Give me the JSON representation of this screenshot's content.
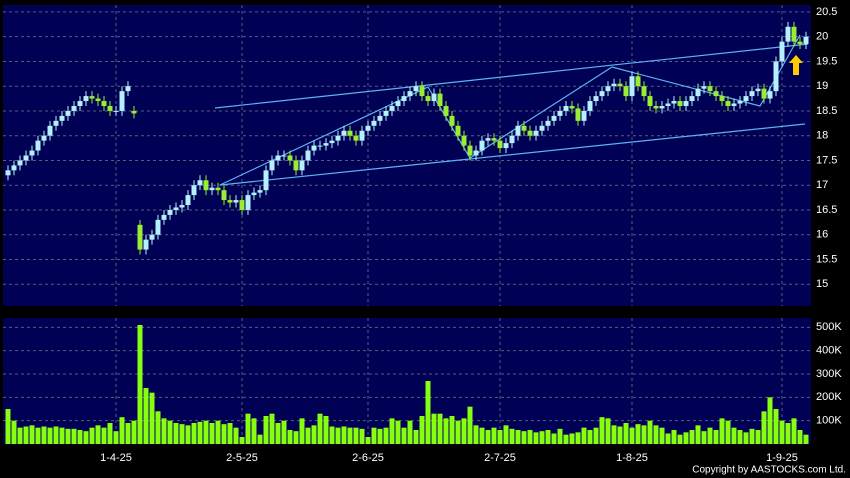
{
  "chart_data": [
    {
      "type": "candlestick",
      "categories": [
        null,
        null,
        null,
        null,
        null,
        null,
        null,
        null,
        null,
        null,
        null,
        null,
        null,
        null,
        null,
        null,
        null,
        null,
        "1-4-25",
        null,
        null,
        null,
        null,
        null,
        null,
        null,
        null,
        null,
        null,
        null,
        null,
        null,
        null,
        null,
        null,
        null,
        null,
        null,
        null,
        "2-5-25",
        null,
        null,
        null,
        null,
        null,
        null,
        null,
        null,
        null,
        null,
        null,
        null,
        null,
        null,
        null,
        null,
        null,
        null,
        null,
        null,
        "2-6-25",
        null,
        null,
        null,
        null,
        null,
        null,
        null,
        null,
        null,
        null,
        null,
        null,
        null,
        null,
        null,
        null,
        null,
        null,
        null,
        null,
        null,
        "2-7-25",
        null,
        null,
        null,
        null,
        null,
        null,
        null,
        null,
        null,
        null,
        null,
        null,
        null,
        null,
        null,
        null,
        null,
        null,
        null,
        null,
        null,
        "1-8-25",
        null,
        null,
        null,
        null,
        null,
        null,
        null,
        null,
        null,
        null,
        null,
        null,
        null,
        null,
        null,
        null,
        null,
        null,
        null,
        null,
        null,
        null,
        null,
        null,
        "1-9-25",
        null,
        null,
        null,
        null
      ],
      "open": [
        17.2,
        17.3,
        17.4,
        17.5,
        17.6,
        17.7,
        17.9,
        18.0,
        18.2,
        18.3,
        18.4,
        18.5,
        18.6,
        18.7,
        18.8,
        18.75,
        18.7,
        18.6,
        18.5,
        18.5,
        18.9,
        18.5,
        16.2,
        15.7,
        15.9,
        16.0,
        16.3,
        16.4,
        16.5,
        16.55,
        16.6,
        16.8,
        17.0,
        17.1,
        16.9,
        16.95,
        16.9,
        16.7,
        16.65,
        16.7,
        16.5,
        16.8,
        16.85,
        16.9,
        17.3,
        17.5,
        17.6,
        17.6,
        17.5,
        17.3,
        17.5,
        17.7,
        17.8,
        17.8,
        17.85,
        17.9,
        18.0,
        18.1,
        18.0,
        17.9,
        18.1,
        18.2,
        18.3,
        18.4,
        18.5,
        18.6,
        18.7,
        18.8,
        18.9,
        19.0,
        18.8,
        18.7,
        18.85,
        18.6,
        18.4,
        18.2,
        18.0,
        17.8,
        17.6,
        17.7,
        17.9,
        17.95,
        17.9,
        17.75,
        17.85,
        18.0,
        18.2,
        18.1,
        18.0,
        18.1,
        18.2,
        18.3,
        18.4,
        18.5,
        18.6,
        18.55,
        18.3,
        18.5,
        18.7,
        18.8,
        18.9,
        19.0,
        19.05,
        19.0,
        18.8,
        19.2,
        19.0,
        18.8,
        18.6,
        18.55,
        18.6,
        18.65,
        18.7,
        18.6,
        18.7,
        18.8,
        18.95,
        19.0,
        18.9,
        18.8,
        18.7,
        18.6,
        18.65,
        18.7,
        18.8,
        18.9,
        18.95,
        18.75,
        18.9,
        19.5,
        19.9,
        20.2,
        19.9,
        19.85
      ],
      "high": [
        17.4,
        17.5,
        17.6,
        17.7,
        17.8,
        18.0,
        18.1,
        18.3,
        18.4,
        18.5,
        18.6,
        18.7,
        18.8,
        18.9,
        18.9,
        18.85,
        18.8,
        18.7,
        18.6,
        19.0,
        19.1,
        18.6,
        16.3,
        16.0,
        16.1,
        16.4,
        16.5,
        16.6,
        16.65,
        16.7,
        16.9,
        17.1,
        17.2,
        17.2,
        17.05,
        17.05,
        17.0,
        16.8,
        16.8,
        16.8,
        16.9,
        16.95,
        17.0,
        17.4,
        17.6,
        17.7,
        17.7,
        17.7,
        17.6,
        17.6,
        17.8,
        17.9,
        17.9,
        17.95,
        18.0,
        18.1,
        18.2,
        18.2,
        18.1,
        18.2,
        18.3,
        18.4,
        18.5,
        18.6,
        18.7,
        18.8,
        18.9,
        19.0,
        19.1,
        19.1,
        18.9,
        18.95,
        18.95,
        18.7,
        18.5,
        18.3,
        18.1,
        17.9,
        17.8,
        18.0,
        18.05,
        18.05,
        18.0,
        17.95,
        18.1,
        18.3,
        18.3,
        18.2,
        18.2,
        18.3,
        18.4,
        18.5,
        18.6,
        18.7,
        18.7,
        18.65,
        18.6,
        18.8,
        18.9,
        19.0,
        19.1,
        19.15,
        19.15,
        19.1,
        19.3,
        19.3,
        19.1,
        18.9,
        18.7,
        18.7,
        18.75,
        18.8,
        18.8,
        18.8,
        18.9,
        19.05,
        19.1,
        19.1,
        19.0,
        18.9,
        18.8,
        18.75,
        18.8,
        18.9,
        19.0,
        19.05,
        19.05,
        19.0,
        19.6,
        20.0,
        20.3,
        20.3,
        20.0,
        20.1
      ],
      "low": [
        17.1,
        17.2,
        17.3,
        17.4,
        17.5,
        17.6,
        17.8,
        17.9,
        18.1,
        18.2,
        18.3,
        18.4,
        18.5,
        18.6,
        18.65,
        18.6,
        18.5,
        18.4,
        18.4,
        18.4,
        18.8,
        18.35,
        15.6,
        15.6,
        15.8,
        15.9,
        16.2,
        16.3,
        16.4,
        16.45,
        16.5,
        16.7,
        16.9,
        16.8,
        16.8,
        16.8,
        16.6,
        16.55,
        16.55,
        16.4,
        16.4,
        16.7,
        16.75,
        16.8,
        17.2,
        17.4,
        17.5,
        17.4,
        17.2,
        17.2,
        17.4,
        17.6,
        17.7,
        17.7,
        17.75,
        17.8,
        17.9,
        17.9,
        17.8,
        17.8,
        18.0,
        18.1,
        18.2,
        18.3,
        18.4,
        18.5,
        18.6,
        18.7,
        18.8,
        18.7,
        18.6,
        18.6,
        18.5,
        18.3,
        18.1,
        17.9,
        17.7,
        17.5,
        17.5,
        17.6,
        17.8,
        17.8,
        17.65,
        17.65,
        17.75,
        17.9,
        18.0,
        17.9,
        17.9,
        18.0,
        18.1,
        18.2,
        18.3,
        18.4,
        18.45,
        18.2,
        18.2,
        18.4,
        18.6,
        18.7,
        18.8,
        18.9,
        18.9,
        18.7,
        18.7,
        18.9,
        18.7,
        18.5,
        18.45,
        18.45,
        18.5,
        18.55,
        18.5,
        18.5,
        18.6,
        18.7,
        18.85,
        18.8,
        18.7,
        18.6,
        18.5,
        18.5,
        18.55,
        18.6,
        18.7,
        18.8,
        18.65,
        18.65,
        18.8,
        19.4,
        19.8,
        19.8,
        19.75,
        19.75
      ],
      "close": [
        17.3,
        17.4,
        17.5,
        17.6,
        17.7,
        17.9,
        18.0,
        18.2,
        18.3,
        18.4,
        18.5,
        18.6,
        18.7,
        18.8,
        18.75,
        18.7,
        18.6,
        18.5,
        18.5,
        18.9,
        19.0,
        18.45,
        15.7,
        15.9,
        16.0,
        16.3,
        16.4,
        16.5,
        16.55,
        16.6,
        16.8,
        17.0,
        17.1,
        16.9,
        16.95,
        16.9,
        16.7,
        16.65,
        16.7,
        16.5,
        16.8,
        16.85,
        16.9,
        17.3,
        17.5,
        17.6,
        17.6,
        17.5,
        17.3,
        17.5,
        17.7,
        17.8,
        17.8,
        17.85,
        17.9,
        18.0,
        18.1,
        18.0,
        17.9,
        18.1,
        18.2,
        18.3,
        18.4,
        18.5,
        18.6,
        18.7,
        18.8,
        18.9,
        19.0,
        18.8,
        18.7,
        18.85,
        18.6,
        18.4,
        18.2,
        18.0,
        17.8,
        17.6,
        17.7,
        17.9,
        17.95,
        17.9,
        17.75,
        17.85,
        18.0,
        18.2,
        18.1,
        18.0,
        18.1,
        18.2,
        18.3,
        18.4,
        18.5,
        18.6,
        18.55,
        18.3,
        18.5,
        18.7,
        18.8,
        18.9,
        19.0,
        19.05,
        19.0,
        18.8,
        19.2,
        19.0,
        18.8,
        18.6,
        18.55,
        18.6,
        18.65,
        18.7,
        18.6,
        18.7,
        18.8,
        18.95,
        19.0,
        18.9,
        18.8,
        18.7,
        18.6,
        18.65,
        18.7,
        18.8,
        18.9,
        18.95,
        18.75,
        18.9,
        19.5,
        19.9,
        20.2,
        19.9,
        19.85,
        20.0
      ],
      "up_color": "#b4f0ff",
      "down_color": "#99ee33",
      "ylim": [
        14.56,
        20.64
      ],
      "yticks": [
        15,
        15.5,
        16,
        16.5,
        17,
        17.5,
        18,
        18.5,
        19,
        19.5,
        20,
        20.5
      ],
      "grid": true
    },
    {
      "type": "bar",
      "values": [
        150000,
        100000,
        70000,
        75000,
        80000,
        70000,
        75000,
        70000,
        75000,
        70000,
        65000,
        65000,
        60000,
        55000,
        70000,
        80000,
        70000,
        90000,
        55000,
        115000,
        90000,
        100000,
        510000,
        240000,
        220000,
        140000,
        110000,
        100000,
        90000,
        85000,
        80000,
        90000,
        95000,
        100000,
        90000,
        100000,
        85000,
        90000,
        70000,
        30000,
        130000,
        110000,
        40000,
        120000,
        130000,
        90000,
        100000,
        60000,
        55000,
        110000,
        70000,
        80000,
        130000,
        120000,
        75000,
        70000,
        75000,
        70000,
        70000,
        65000,
        30000,
        70000,
        65000,
        70000,
        110000,
        100000,
        70000,
        100000,
        60000,
        120000,
        270000,
        130000,
        130000,
        110000,
        120000,
        100000,
        110000,
        160000,
        80000,
        70000,
        60000,
        70000,
        60000,
        80000,
        65000,
        60000,
        55000,
        60000,
        50000,
        55000,
        60000,
        45000,
        65000,
        40000,
        45000,
        50000,
        70000,
        60000,
        70000,
        115000,
        110000,
        80000,
        75000,
        90000,
        70000,
        85000,
        80000,
        100000,
        80000,
        70000,
        45000,
        60000,
        40000,
        50000,
        60000,
        80000,
        55000,
        70000,
        60000,
        110000,
        100000,
        70000,
        60000,
        50000,
        65000,
        60000,
        140000,
        200000,
        150000,
        100000,
        90000,
        110000,
        60000,
        40000
      ],
      "color": "#88ff11",
      "ylim": [
        0,
        540000
      ],
      "yticks": [
        {
          "value": 100000,
          "label": "100K"
        },
        {
          "value": 200000,
          "label": "200K"
        },
        {
          "value": 300000,
          "label": "300K"
        },
        {
          "value": 400000,
          "label": "400K"
        },
        {
          "value": 500000,
          "label": "500K"
        }
      ],
      "grid": true
    }
  ],
  "footer": "Copyright by AASTOCKS.com Ltd."
}
